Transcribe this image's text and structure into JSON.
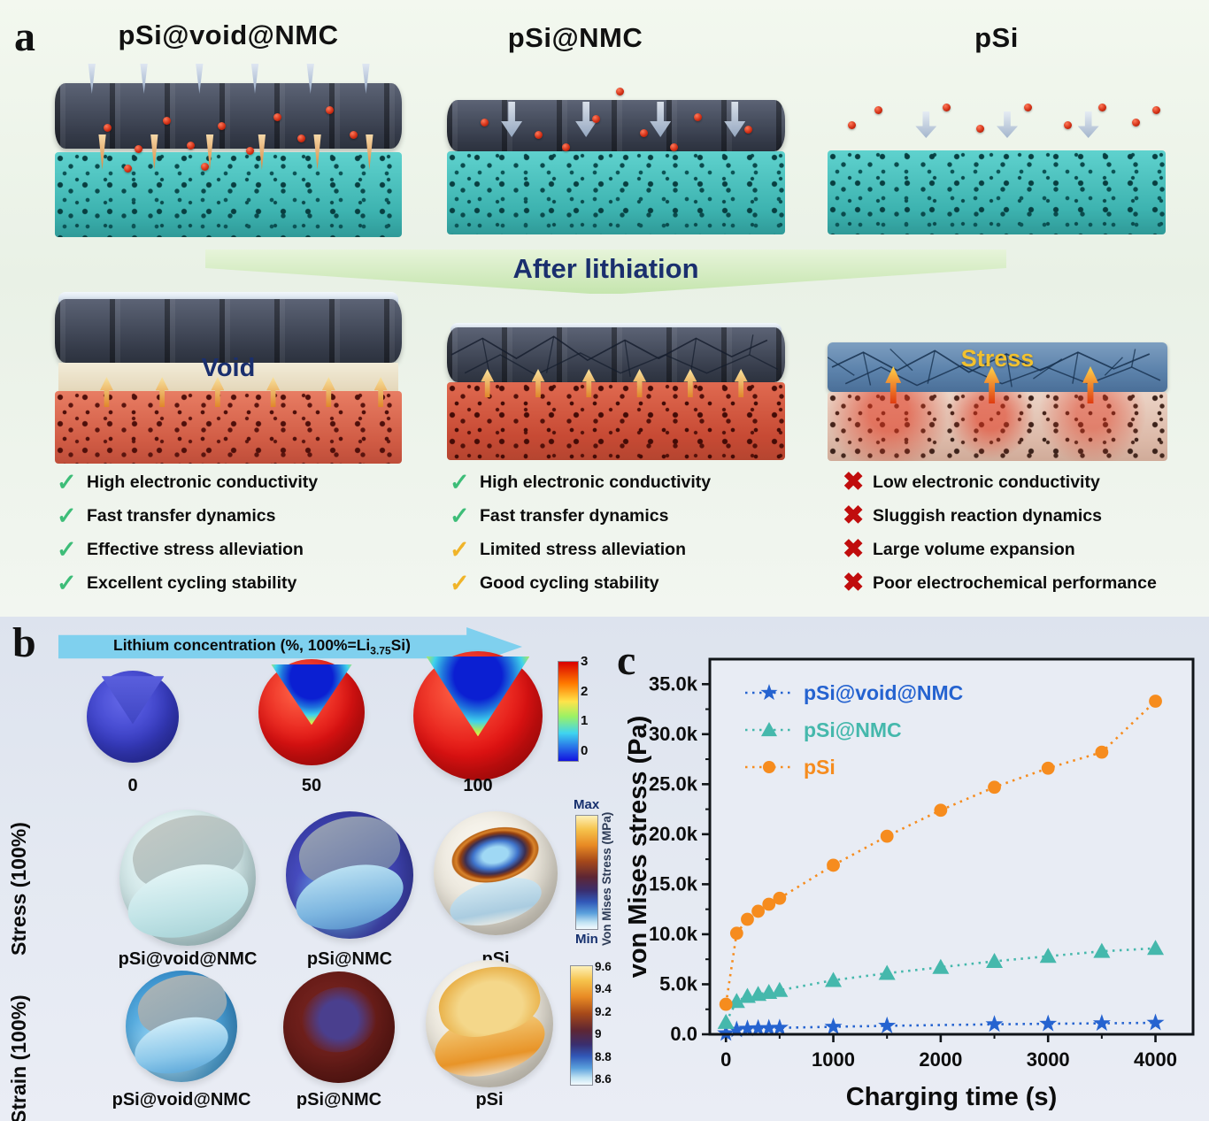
{
  "colors": {
    "accent_blue": "#2563d0",
    "accent_teal": "#45b8ac",
    "accent_orange": "#f68c1e",
    "check_green": "#3dbd78",
    "check_yellow": "#f0b429",
    "cross_red": "#c00d0d",
    "banner_navy": "#1a2f6e",
    "stress_yellow": "#f2c12e",
    "arrow_sky": "#7fd0ee"
  },
  "panel_a": {
    "label": "a",
    "column_titles": [
      "pSi@void@NMC",
      "pSi@NMC",
      "pSi"
    ],
    "banner": "After lithiation",
    "void_label": "Void",
    "stress_label": "Stress",
    "checklists": [
      [
        {
          "icon": "check-icon",
          "glyph": "✓",
          "text": "High electronic conductivity"
        },
        {
          "icon": "check-icon",
          "glyph": "✓",
          "text": "Fast transfer dynamics"
        },
        {
          "icon": "check-icon",
          "glyph": "✓",
          "text": "Effective stress alleviation"
        },
        {
          "icon": "check-icon",
          "glyph": "✓",
          "text": "Excellent cycling stability"
        }
      ],
      [
        {
          "icon": "check-icon",
          "glyph": "✓",
          "text": "High electronic conductivity"
        },
        {
          "icon": "check-icon",
          "glyph": "✓",
          "text": "Fast  transfer dynamics"
        },
        {
          "icon": "partial-check-icon",
          "glyph": "✓",
          "text": "Limited stress alleviation"
        },
        {
          "icon": "partial-check-icon",
          "glyph": "✓",
          "text": "Good cycling stability"
        }
      ],
      [
        {
          "icon": "cross-icon",
          "glyph": "✖",
          "text": "Low electronic conductivity"
        },
        {
          "icon": "cross-icon",
          "glyph": "✖",
          "text": "Sluggish reaction dynamics"
        },
        {
          "icon": "cross-icon",
          "glyph": "✖",
          "text": "Large volume expansion"
        },
        {
          "icon": "cross-icon",
          "glyph": "✖",
          "text": "Poor electrochemical performance"
        }
      ]
    ]
  },
  "panel_b": {
    "label": "b",
    "arrow_text": {
      "pre": "Lithium concentration (%, 100%=Li",
      "sub": "3.75",
      "post": "Si)"
    },
    "concentration_labels": [
      "0",
      "50",
      "100"
    ],
    "stress_row_label": "Stress (100%)",
    "strain_row_label": "Strain (100%)",
    "stress_sphere_labels": [
      "pSi@void@NMC",
      "pSi@NMC",
      "pSi"
    ],
    "strain_sphere_labels": [
      "pSi@void@NMC",
      "pSi@NMC",
      "pSi"
    ],
    "colorbar_concentration": {
      "ticks": [
        "3",
        "2",
        "1",
        "0"
      ]
    },
    "colorbar_stress": {
      "max_label": "Max",
      "min_label": "Min",
      "axis_label": "Von Mises Stress (MPa)"
    },
    "colorbar_strain": {
      "ticks": [
        "9.6",
        "9.4",
        "9.2",
        "9",
        "8.8",
        "8.6"
      ]
    }
  },
  "panel_c": {
    "label": "c"
  },
  "chart_data": {
    "type": "line",
    "title": "",
    "xlabel": "Charging time (s)",
    "ylabel": "von Mises stress (Pa)",
    "xlim": [
      -150,
      4350
    ],
    "ylim": [
      0,
      37500
    ],
    "xticks": [
      0,
      1000,
      2000,
      3000,
      4000
    ],
    "xtick_labels": [
      "0",
      "1000",
      "2000",
      "3000",
      "4000"
    ],
    "yticks": [
      0,
      5000,
      10000,
      15000,
      20000,
      25000,
      30000,
      35000
    ],
    "ytick_labels": [
      "0.0",
      "5.0k",
      "10.0k",
      "15.0k",
      "20.0k",
      "25.0k",
      "30.0k",
      "35.0k"
    ],
    "grid": false,
    "legend_position": "top-left",
    "line_style": "dotted",
    "series": [
      {
        "name": "pSi@void@NMC",
        "color": "#2563d0",
        "marker": "star",
        "x": [
          0,
          100,
          200,
          300,
          400,
          500,
          1000,
          1500,
          2500,
          3000,
          3500,
          4000
        ],
        "y": [
          100,
          450,
          550,
          600,
          620,
          650,
          750,
          850,
          1000,
          1050,
          1100,
          1150
        ]
      },
      {
        "name": "pSi@NMC",
        "color": "#45b8ac",
        "marker": "triangle",
        "x": [
          0,
          100,
          200,
          300,
          400,
          500,
          1000,
          1500,
          2000,
          2500,
          3000,
          3500,
          4000
        ],
        "y": [
          1200,
          3300,
          3800,
          4000,
          4200,
          4400,
          5400,
          6100,
          6700,
          7300,
          7800,
          8300,
          8600
        ]
      },
      {
        "name": "pSi",
        "color": "#f68c1e",
        "marker": "circle",
        "x": [
          0,
          100,
          200,
          300,
          400,
          500,
          1000,
          1500,
          2000,
          2500,
          3000,
          3500,
          4000
        ],
        "y": [
          3000,
          10100,
          11500,
          12300,
          13000,
          13600,
          16900,
          19800,
          22400,
          24700,
          26600,
          28200,
          33300
        ]
      }
    ]
  }
}
